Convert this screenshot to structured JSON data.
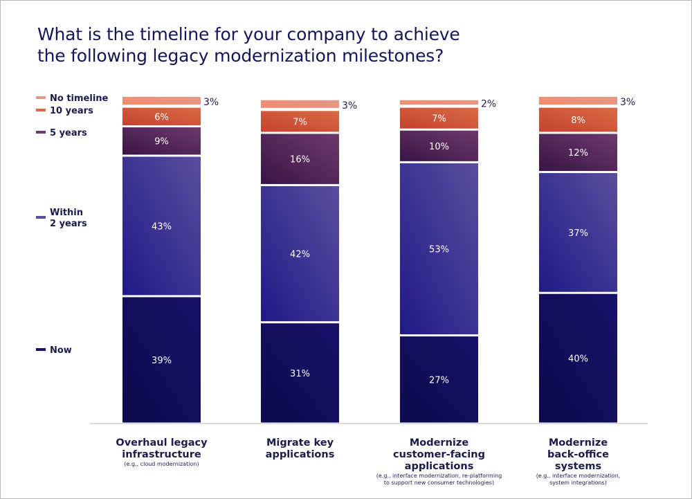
{
  "chart_data": {
    "type": "bar",
    "stacked": true,
    "title": "What is the timeline for your company to achieve the following legacy modernization milestones?",
    "categories": [
      {
        "label": [
          "Overhaul legacy",
          "infrastructure"
        ],
        "note": [
          "(e.g., cloud modernization)"
        ]
      },
      {
        "label": [
          "Migrate key",
          "applications"
        ],
        "note": []
      },
      {
        "label": [
          "Modernize",
          "customer-facing",
          "applications"
        ],
        "note": [
          "(e.g., interface modernization, re-platforming",
          "to support new consumer technologies)"
        ]
      },
      {
        "label": [
          "Modernize",
          "back-office",
          "systems"
        ],
        "note": [
          "(e.g., interface modernization,",
          "system integrations)"
        ]
      }
    ],
    "series": [
      {
        "name": "Now",
        "legend": [
          "Now"
        ],
        "color": "#0c0a4c",
        "color2": "#16126a",
        "values": [
          39,
          31,
          27,
          40
        ]
      },
      {
        "name": "Within 2 years",
        "legend": [
          "Within",
          "2 years"
        ],
        "color": "#1f1a86",
        "color2": "#5a4e9e",
        "values": [
          43,
          42,
          53,
          37
        ]
      },
      {
        "name": "5 years",
        "legend": [
          "5 years"
        ],
        "color": "#3a1447",
        "color2": "#6e3a6a",
        "values": [
          9,
          16,
          10,
          12
        ]
      },
      {
        "name": "10 years",
        "legend": [
          "10 years"
        ],
        "color": "#c4432f",
        "color2": "#d96a45",
        "values": [
          6,
          7,
          7,
          8
        ]
      },
      {
        "name": "No timeline",
        "legend": [
          "No timeline"
        ],
        "color": "#f7896a",
        "color2": "#e09a8a",
        "values": [
          3,
          3,
          2,
          3
        ]
      }
    ],
    "value_suffix": "%",
    "ylim": [
      0,
      100
    ],
    "grid": false,
    "legend_position": "left"
  }
}
